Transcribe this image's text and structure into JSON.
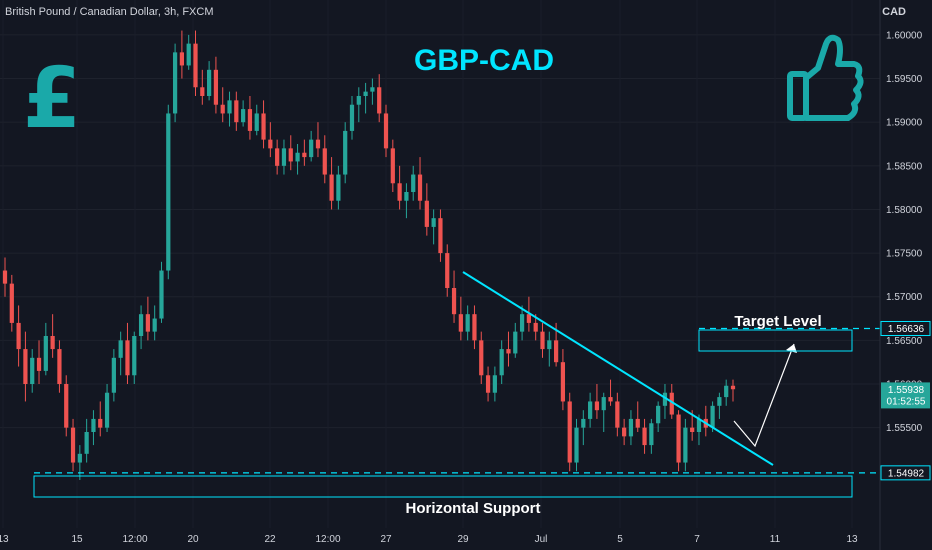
{
  "header": {
    "symbol_line": "British Pound / Canadian Dollar, 3h, FXCM",
    "currency": "CAD"
  },
  "overlay": {
    "title": "GBP-CAD",
    "pound_symbol": "£",
    "thumb_icon": "thumbs-up-icon",
    "target_label": "Target Level",
    "support_label": "Horizontal Support",
    "accent_color": "#00e5ff",
    "icon_color": "#1aa9a9"
  },
  "chart_data": {
    "type": "candlestick",
    "title": "GBP-CAD",
    "y_range": [
      1.5435,
      1.604
    ],
    "y_ticks": [
      "1.60000",
      "1.59500",
      "1.59000",
      "1.58500",
      "1.58000",
      "1.57500",
      "1.57000",
      "1.56500",
      "1.56000",
      "1.55500"
    ],
    "y_tick_values": [
      1.6,
      1.595,
      1.59,
      1.585,
      1.58,
      1.575,
      1.57,
      1.565,
      1.56,
      1.555
    ],
    "x_ticks": [
      "13",
      "15",
      "12:00",
      "20",
      "22",
      "12:00",
      "27",
      "29",
      "Jul",
      "5",
      "7",
      "11",
      "13"
    ],
    "price_labels": {
      "target": "1.56636",
      "current": "1.55938",
      "countdown": "01:52:55",
      "support": "1.54982"
    },
    "levels": {
      "target": 1.56636,
      "current": 1.55938,
      "support": 1.54982
    },
    "up_color": "#26a69a",
    "down_color": "#ef5350",
    "candles": [
      [
        1.573,
        1.5745,
        1.57,
        1.5715
      ],
      [
        1.5715,
        1.5725,
        1.566,
        1.567
      ],
      [
        1.567,
        1.569,
        1.562,
        1.564
      ],
      [
        1.564,
        1.566,
        1.558,
        1.56
      ],
      [
        1.56,
        1.564,
        1.559,
        1.563
      ],
      [
        1.563,
        1.565,
        1.56,
        1.5615
      ],
      [
        1.5615,
        1.567,
        1.561,
        1.5655
      ],
      [
        1.5655,
        1.568,
        1.563,
        1.564
      ],
      [
        1.564,
        1.565,
        1.559,
        1.56
      ],
      [
        1.56,
        1.561,
        1.554,
        1.555
      ],
      [
        1.555,
        1.556,
        1.55,
        1.551
      ],
      [
        1.551,
        1.553,
        1.549,
        1.552
      ],
      [
        1.552,
        1.556,
        1.551,
        1.5545
      ],
      [
        1.5545,
        1.557,
        1.553,
        1.556
      ],
      [
        1.556,
        1.558,
        1.554,
        1.555
      ],
      [
        1.555,
        1.56,
        1.5545,
        1.559
      ],
      [
        1.559,
        1.564,
        1.558,
        1.563
      ],
      [
        1.563,
        1.566,
        1.561,
        1.565
      ],
      [
        1.565,
        1.567,
        1.56,
        1.561
      ],
      [
        1.561,
        1.566,
        1.56,
        1.5655
      ],
      [
        1.5655,
        1.569,
        1.564,
        1.568
      ],
      [
        1.568,
        1.57,
        1.565,
        1.566
      ],
      [
        1.566,
        1.569,
        1.565,
        1.5675
      ],
      [
        1.5675,
        1.574,
        1.567,
        1.573
      ],
      [
        1.573,
        1.592,
        1.572,
        1.591
      ],
      [
        1.591,
        1.599,
        1.59,
        1.598
      ],
      [
        1.598,
        1.6005,
        1.595,
        1.5965
      ],
      [
        1.5965,
        1.6,
        1.596,
        1.599
      ],
      [
        1.599,
        1.6005,
        1.593,
        1.594
      ],
      [
        1.594,
        1.596,
        1.592,
        1.593
      ],
      [
        1.593,
        1.597,
        1.5925,
        1.596
      ],
      [
        1.596,
        1.5975,
        1.591,
        1.592
      ],
      [
        1.592,
        1.594,
        1.59,
        1.591
      ],
      [
        1.591,
        1.5935,
        1.5895,
        1.5925
      ],
      [
        1.5925,
        1.5935,
        1.589,
        1.59
      ],
      [
        1.59,
        1.5925,
        1.5895,
        1.5915
      ],
      [
        1.5915,
        1.593,
        1.588,
        1.589
      ],
      [
        1.589,
        1.592,
        1.5885,
        1.591
      ],
      [
        1.591,
        1.5925,
        1.587,
        1.588
      ],
      [
        1.588,
        1.59,
        1.586,
        1.587
      ],
      [
        1.587,
        1.588,
        1.584,
        1.585
      ],
      [
        1.585,
        1.588,
        1.584,
        1.587
      ],
      [
        1.587,
        1.5885,
        1.5845,
        1.5855
      ],
      [
        1.5855,
        1.5875,
        1.584,
        1.5865
      ],
      [
        1.5865,
        1.588,
        1.585,
        1.586
      ],
      [
        1.586,
        1.589,
        1.5855,
        1.588
      ],
      [
        1.588,
        1.59,
        1.586,
        1.587
      ],
      [
        1.587,
        1.5885,
        1.583,
        1.584
      ],
      [
        1.584,
        1.586,
        1.58,
        1.581
      ],
      [
        1.581,
        1.585,
        1.58,
        1.584
      ],
      [
        1.584,
        1.59,
        1.583,
        1.589
      ],
      [
        1.589,
        1.593,
        1.588,
        1.592
      ],
      [
        1.592,
        1.594,
        1.59,
        1.593
      ],
      [
        1.593,
        1.5945,
        1.591,
        1.5935
      ],
      [
        1.5935,
        1.595,
        1.592,
        1.594
      ],
      [
        1.594,
        1.5955,
        1.59,
        1.591
      ],
      [
        1.591,
        1.592,
        1.586,
        1.587
      ],
      [
        1.587,
        1.588,
        1.582,
        1.583
      ],
      [
        1.583,
        1.585,
        1.58,
        1.581
      ],
      [
        1.581,
        1.583,
        1.579,
        1.582
      ],
      [
        1.582,
        1.585,
        1.581,
        1.584
      ],
      [
        1.584,
        1.586,
        1.58,
        1.581
      ],
      [
        1.581,
        1.583,
        1.577,
        1.578
      ],
      [
        1.578,
        1.58,
        1.576,
        1.579
      ],
      [
        1.579,
        1.58,
        1.574,
        1.575
      ],
      [
        1.575,
        1.576,
        1.57,
        1.571
      ],
      [
        1.571,
        1.573,
        1.567,
        1.568
      ],
      [
        1.568,
        1.57,
        1.565,
        1.566
      ],
      [
        1.566,
        1.569,
        1.565,
        1.568
      ],
      [
        1.568,
        1.569,
        1.564,
        1.565
      ],
      [
        1.565,
        1.566,
        1.56,
        1.561
      ],
      [
        1.561,
        1.562,
        1.558,
        1.559
      ],
      [
        1.559,
        1.562,
        1.558,
        1.561
      ],
      [
        1.561,
        1.565,
        1.56,
        1.564
      ],
      [
        1.564,
        1.566,
        1.562,
        1.5635
      ],
      [
        1.5635,
        1.567,
        1.563,
        1.566
      ],
      [
        1.566,
        1.569,
        1.565,
        1.568
      ],
      [
        1.568,
        1.57,
        1.566,
        1.567
      ],
      [
        1.567,
        1.568,
        1.565,
        1.566
      ],
      [
        1.566,
        1.567,
        1.563,
        1.564
      ],
      [
        1.564,
        1.566,
        1.562,
        1.565
      ],
      [
        1.565,
        1.567,
        1.562,
        1.5625
      ],
      [
        1.5625,
        1.564,
        1.557,
        1.558
      ],
      [
        1.558,
        1.559,
        1.55,
        1.551
      ],
      [
        1.551,
        1.556,
        1.55,
        1.555
      ],
      [
        1.555,
        1.557,
        1.553,
        1.556
      ],
      [
        1.556,
        1.559,
        1.555,
        1.558
      ],
      [
        1.558,
        1.56,
        1.556,
        1.557
      ],
      [
        1.557,
        1.559,
        1.5545,
        1.5585
      ],
      [
        1.5585,
        1.5605,
        1.5575,
        1.558
      ],
      [
        1.558,
        1.559,
        1.554,
        1.555
      ],
      [
        1.555,
        1.556,
        1.553,
        1.554
      ],
      [
        1.554,
        1.557,
        1.553,
        1.556
      ],
      [
        1.556,
        1.558,
        1.5545,
        1.555
      ],
      [
        1.555,
        1.556,
        1.552,
        1.553
      ],
      [
        1.553,
        1.556,
        1.552,
        1.5555
      ],
      [
        1.5555,
        1.558,
        1.5545,
        1.5575
      ],
      [
        1.5575,
        1.56,
        1.556,
        1.559
      ],
      [
        1.559,
        1.56,
        1.556,
        1.5565
      ],
      [
        1.5565,
        1.557,
        1.55,
        1.551
      ],
      [
        1.551,
        1.556,
        1.55,
        1.555
      ],
      [
        1.555,
        1.557,
        1.5535,
        1.5545
      ],
      [
        1.5545,
        1.5565,
        1.553,
        1.556
      ],
      [
        1.556,
        1.5575,
        1.554,
        1.555
      ],
      [
        1.555,
        1.558,
        1.5545,
        1.5575
      ],
      [
        1.5575,
        1.559,
        1.556,
        1.5585
      ],
      [
        1.5585,
        1.5605,
        1.5575,
        1.5598
      ],
      [
        1.5598,
        1.5605,
        1.558,
        1.5594
      ]
    ]
  }
}
